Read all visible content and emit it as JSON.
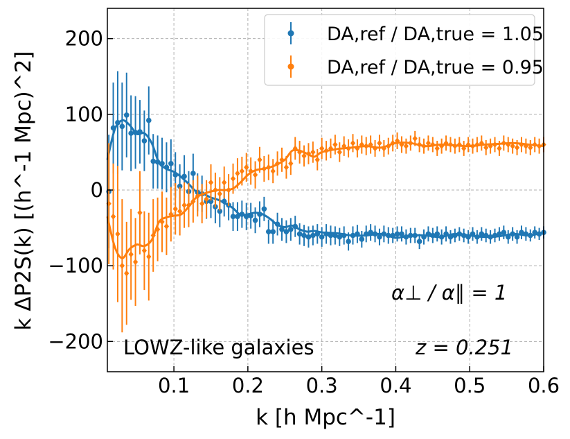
{
  "chart_data": {
    "type": "scatter",
    "title": "",
    "xlabel": "k [h Mpc^-1]",
    "ylabel": "k ΔP2S(k) [(h^-1 Mpc)^2]",
    "xlim": [
      0.01,
      0.6
    ],
    "ylim": [
      -240,
      240
    ],
    "xticks": [
      0.1,
      0.2,
      0.3,
      0.4,
      0.5,
      0.6
    ],
    "xtick_labels": [
      "0.1",
      "0.2",
      "0.3",
      "0.4",
      "0.5",
      "0.6"
    ],
    "yticks": [
      200,
      100,
      0,
      -100,
      -200
    ],
    "ytick_labels": [
      "200",
      "100",
      "0",
      "−100",
      "−200"
    ],
    "grid": true,
    "legend_position": "top-right",
    "annotations": {
      "ratio": "α⊥ / α∥ = 1",
      "sample": "LOWZ-like galaxies",
      "redshift": "z = 0.251"
    },
    "series": [
      {
        "name": "D_A,ref / D_A,true = 1.05",
        "legend_label": "DA,ref / DA,true = 1.05",
        "color": "#1f77b4",
        "x": [
          0.012,
          0.018,
          0.024,
          0.03,
          0.036,
          0.042,
          0.048,
          0.054,
          0.06,
          0.066,
          0.072,
          0.078,
          0.084,
          0.09,
          0.096,
          0.102,
          0.108,
          0.114,
          0.12,
          0.126,
          0.132,
          0.138,
          0.144,
          0.15,
          0.156,
          0.162,
          0.168,
          0.174,
          0.18,
          0.186,
          0.192,
          0.198,
          0.204,
          0.21,
          0.216,
          0.222,
          0.228,
          0.234,
          0.24,
          0.246,
          0.252,
          0.258,
          0.264,
          0.27,
          0.276,
          0.282,
          0.288,
          0.294,
          0.3,
          0.306,
          0.312,
          0.318,
          0.324,
          0.33,
          0.336,
          0.342,
          0.348,
          0.354,
          0.36,
          0.366,
          0.372,
          0.378,
          0.384,
          0.39,
          0.396,
          0.402,
          0.408,
          0.414,
          0.42,
          0.426,
          0.432,
          0.438,
          0.444,
          0.45,
          0.456,
          0.462,
          0.468,
          0.474,
          0.48,
          0.486,
          0.492,
          0.498,
          0.504,
          0.51,
          0.516,
          0.522,
          0.528,
          0.534,
          0.54,
          0.546,
          0.552,
          0.558,
          0.564,
          0.57,
          0.576,
          0.582,
          0.588,
          0.594,
          0.6
        ],
        "values": [
          -2,
          82,
          89,
          84,
          99,
          75,
          76,
          77,
          65,
          92,
          38,
          37,
          35,
          30,
          35,
          20,
          5,
          18,
          -2,
          22,
          -3,
          -5,
          -15,
          -15,
          -22,
          -28,
          -15,
          -20,
          -35,
          -35,
          -32,
          -35,
          -34,
          -40,
          -32,
          -25,
          -55,
          -55,
          -45,
          -52,
          -55,
          -52,
          -48,
          -58,
          -60,
          -62,
          -60,
          -58,
          -62,
          -58,
          -60,
          -60,
          -62,
          -60,
          -68,
          -60,
          -58,
          -65,
          -58,
          -56,
          -58,
          -62,
          -58,
          -60,
          -60,
          -58,
          -58,
          -62,
          -60,
          -60,
          -68,
          -62,
          -58,
          -60,
          -58,
          -62,
          -58,
          -62,
          -60,
          -58,
          -60,
          -62,
          -58,
          -62,
          -58,
          -60,
          -62,
          -60,
          -58,
          -56,
          -62,
          -58,
          -62,
          -56,
          -58,
          -60,
          -56,
          -58,
          -56
        ],
        "errors": [
          75,
          60,
          68,
          58,
          56,
          50,
          48,
          42,
          40,
          45,
          36,
          35,
          34,
          33,
          32,
          30,
          29,
          28,
          27,
          26,
          25,
          24,
          23,
          22,
          22,
          21,
          20,
          20,
          19,
          19,
          18,
          18,
          17,
          17,
          17,
          16,
          16,
          16,
          15,
          15,
          15,
          15,
          14,
          14,
          14,
          14,
          13,
          13,
          13,
          13,
          13,
          12,
          12,
          12,
          12,
          12,
          12,
          11,
          11,
          11,
          11,
          11,
          11,
          11,
          10,
          10,
          10,
          10,
          10,
          10,
          10,
          10,
          10,
          10,
          10,
          10,
          10,
          9,
          9,
          9,
          9,
          9,
          9,
          9,
          9,
          9,
          9,
          9,
          9,
          9,
          9,
          9,
          9,
          9,
          9,
          8,
          8,
          8,
          8
        ],
        "model_x": [
          0.01,
          0.02,
          0.03,
          0.04,
          0.05,
          0.06,
          0.07,
          0.08,
          0.09,
          0.1,
          0.11,
          0.12,
          0.13,
          0.14,
          0.15,
          0.16,
          0.17,
          0.18,
          0.19,
          0.2,
          0.21,
          0.22,
          0.23,
          0.24,
          0.25,
          0.26,
          0.27,
          0.28,
          0.29,
          0.3,
          0.32,
          0.34,
          0.36,
          0.38,
          0.4,
          0.42,
          0.44,
          0.46,
          0.48,
          0.5,
          0.52,
          0.54,
          0.56,
          0.58,
          0.6
        ],
        "model_y": [
          40,
          80,
          92,
          86,
          74,
          75,
          62,
          36,
          28,
          24,
          17,
          8,
          -2,
          -5,
          -10,
          -13,
          -18,
          -24,
          -33,
          -32,
          -30,
          -32,
          -38,
          -46,
          -49,
          -47,
          -52,
          -55,
          -54,
          -56,
          -57,
          -60,
          -60,
          -58,
          -63,
          -60,
          -60,
          -62,
          -58,
          -60,
          -62,
          -61,
          -58,
          -60,
          -56
        ]
      },
      {
        "name": "D_A,ref / D_A,true = 0.95",
        "legend_label": "DA,ref / DA,true = 0.95",
        "color": "#ff7f0e",
        "x": [
          0.012,
          0.018,
          0.024,
          0.03,
          0.036,
          0.042,
          0.048,
          0.054,
          0.06,
          0.066,
          0.072,
          0.078,
          0.084,
          0.09,
          0.096,
          0.102,
          0.108,
          0.114,
          0.12,
          0.126,
          0.132,
          0.138,
          0.144,
          0.15,
          0.156,
          0.162,
          0.168,
          0.174,
          0.18,
          0.186,
          0.192,
          0.198,
          0.204,
          0.21,
          0.216,
          0.222,
          0.228,
          0.234,
          0.24,
          0.246,
          0.252,
          0.258,
          0.264,
          0.27,
          0.276,
          0.282,
          0.288,
          0.294,
          0.3,
          0.306,
          0.312,
          0.318,
          0.324,
          0.33,
          0.336,
          0.342,
          0.348,
          0.354,
          0.36,
          0.366,
          0.372,
          0.378,
          0.384,
          0.39,
          0.396,
          0.402,
          0.408,
          0.414,
          0.42,
          0.426,
          0.432,
          0.438,
          0.444,
          0.45,
          0.456,
          0.462,
          0.468,
          0.474,
          0.48,
          0.486,
          0.492,
          0.498,
          0.504,
          0.51,
          0.516,
          0.522,
          0.528,
          0.534,
          0.54,
          0.546,
          0.552,
          0.558,
          0.564,
          0.57,
          0.576,
          0.582,
          0.588,
          0.594,
          0.6
        ],
        "values": [
          -18,
          -35,
          -58,
          -100,
          -110,
          -85,
          -95,
          -30,
          -80,
          -88,
          -60,
          -52,
          -42,
          -48,
          -32,
          -25,
          -28,
          -20,
          -20,
          -15,
          -8,
          -18,
          -12,
          10,
          0,
          -5,
          10,
          0,
          15,
          22,
          25,
          30,
          25,
          20,
          40,
          28,
          30,
          25,
          35,
          40,
          30,
          35,
          55,
          50,
          45,
          48,
          50,
          40,
          55,
          52,
          55,
          60,
          50,
          58,
          55,
          62,
          55,
          60,
          58,
          60,
          55,
          62,
          55,
          58,
          62,
          65,
          60,
          58,
          62,
          68,
          60,
          58,
          62,
          60,
          55,
          58,
          62,
          60,
          58,
          60,
          55,
          60,
          58,
          60,
          62,
          56,
          58,
          60,
          55,
          62,
          60,
          58,
          56,
          60,
          58,
          56,
          60,
          58,
          60
        ],
        "errors": [
          80,
          70,
          90,
          88,
          68,
          60,
          58,
          55,
          52,
          58,
          48,
          42,
          40,
          38,
          36,
          34,
          32,
          30,
          29,
          28,
          27,
          26,
          25,
          24,
          23,
          22,
          21,
          21,
          20,
          20,
          19,
          19,
          18,
          18,
          17,
          17,
          17,
          16,
          16,
          16,
          15,
          15,
          15,
          15,
          14,
          14,
          14,
          14,
          14,
          13,
          13,
          13,
          13,
          13,
          12,
          12,
          12,
          12,
          12,
          12,
          11,
          11,
          11,
          11,
          11,
          11,
          11,
          10,
          10,
          10,
          10,
          10,
          10,
          10,
          10,
          10,
          10,
          10,
          10,
          10,
          10,
          10,
          10,
          10,
          10,
          10,
          10,
          10,
          10,
          10,
          10,
          10,
          10,
          10,
          10,
          10,
          10,
          10,
          10
        ],
        "model_x": [
          0.01,
          0.02,
          0.03,
          0.04,
          0.05,
          0.06,
          0.07,
          0.08,
          0.09,
          0.1,
          0.11,
          0.12,
          0.13,
          0.14,
          0.15,
          0.16,
          0.17,
          0.18,
          0.19,
          0.2,
          0.21,
          0.22,
          0.23,
          0.24,
          0.25,
          0.26,
          0.27,
          0.28,
          0.29,
          0.3,
          0.32,
          0.34,
          0.36,
          0.38,
          0.4,
          0.42,
          0.44,
          0.46,
          0.48,
          0.5,
          0.52,
          0.54,
          0.56,
          0.58,
          0.6
        ],
        "model_y": [
          -35,
          -75,
          -90,
          -78,
          -72,
          -74,
          -66,
          -42,
          -36,
          -34,
          -32,
          -22,
          -10,
          -5,
          -2,
          0,
          0,
          2,
          10,
          20,
          26,
          28,
          30,
          34,
          40,
          52,
          52,
          48,
          44,
          50,
          54,
          56,
          58,
          56,
          62,
          62,
          58,
          60,
          59,
          58,
          60,
          61,
          62,
          60,
          58
        ]
      }
    ]
  }
}
